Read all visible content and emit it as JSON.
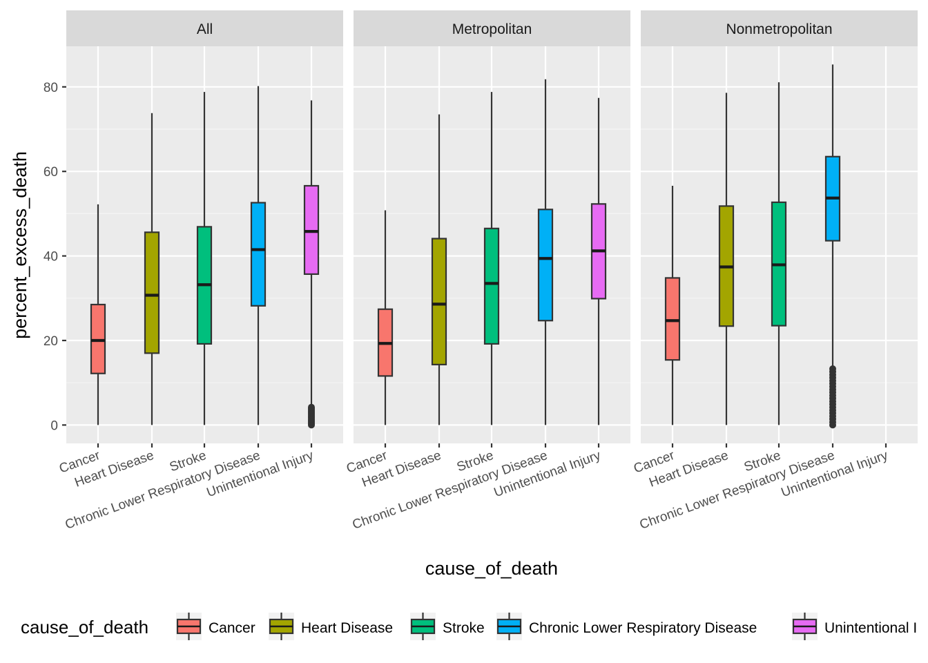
{
  "chart_data": {
    "type": "boxplot",
    "xlabel": "cause_of_death",
    "ylabel": "percent_excess_death",
    "ylim": [
      -4,
      90
    ],
    "yticks": [
      0,
      20,
      40,
      60,
      80
    ],
    "grid": true,
    "legend_position": "bottom",
    "legend_title": "cause_of_death",
    "categories": [
      "Cancer",
      "Heart Disease",
      "Stroke",
      "Chronic Lower Respiratory Disease",
      "Unintentional Injury"
    ],
    "legend_labels": [
      "Cancer",
      "Heart Disease",
      "Stroke",
      "Chronic Lower Respiratory Disease",
      "Unintentional I"
    ],
    "colors": [
      "#F8766D",
      "#A3A500",
      "#00BF7D",
      "#00B0F6",
      "#E76BF3"
    ],
    "panels": [
      {
        "title": "All",
        "boxes": [
          {
            "min": 0,
            "q1": 12.2,
            "median": 20.0,
            "q3": 28.5,
            "max": 52.2,
            "outliers": []
          },
          {
            "min": 0,
            "q1": 17.0,
            "median": 30.7,
            "q3": 45.6,
            "max": 73.8,
            "outliers": []
          },
          {
            "min": 0,
            "q1": 19.2,
            "median": 33.2,
            "q3": 46.9,
            "max": 78.8,
            "outliers": []
          },
          {
            "min": 0,
            "q1": 28.2,
            "median": 41.5,
            "q3": 52.6,
            "max": 80.2,
            "outliers": []
          },
          {
            "min": 4.5,
            "q1": 35.7,
            "median": 45.8,
            "q3": 56.6,
            "max": 76.8,
            "outliers": [
              0,
              0.3,
              0.6,
              0.9,
              1.2,
              1.5,
              1.8,
              2.1,
              2.4,
              2.7,
              3.0,
              3.3,
              3.6,
              3.9,
              4.2
            ]
          }
        ]
      },
      {
        "title": "Metropolitan",
        "boxes": [
          {
            "min": 0,
            "q1": 11.6,
            "median": 19.3,
            "q3": 27.4,
            "max": 50.8,
            "outliers": []
          },
          {
            "min": 0,
            "q1": 14.3,
            "median": 28.6,
            "q3": 44.1,
            "max": 73.5,
            "outliers": []
          },
          {
            "min": 0,
            "q1": 19.2,
            "median": 33.5,
            "q3": 46.5,
            "max": 78.8,
            "outliers": []
          },
          {
            "min": 0,
            "q1": 24.7,
            "median": 39.4,
            "q3": 51.0,
            "max": 81.8,
            "outliers": []
          },
          {
            "min": 0,
            "q1": 29.9,
            "median": 41.2,
            "q3": 52.3,
            "max": 77.4,
            "outliers": []
          }
        ]
      },
      {
        "title": "Nonmetropolitan",
        "boxes": [
          {
            "min": 0,
            "q1": 15.4,
            "median": 24.7,
            "q3": 34.8,
            "max": 56.6,
            "outliers": []
          },
          {
            "min": 0,
            "q1": 23.4,
            "median": 37.4,
            "q3": 51.8,
            "max": 78.6,
            "outliers": []
          },
          {
            "min": 0,
            "q1": 23.5,
            "median": 37.9,
            "q3": 52.7,
            "max": 81.1,
            "outliers": []
          },
          {
            "min": 14.0,
            "q1": 43.6,
            "median": 53.7,
            "q3": 63.5,
            "max": 85.3,
            "outliers": [
              0,
              0.7,
              1.4,
              2.1,
              2.8,
              3.5,
              4.2,
              4.9,
              5.6,
              6.3,
              7.0,
              7.7,
              8.4,
              9.1,
              9.8,
              10.5,
              11.2,
              11.9,
              12.6,
              13.3
            ]
          }
        ]
      }
    ]
  }
}
